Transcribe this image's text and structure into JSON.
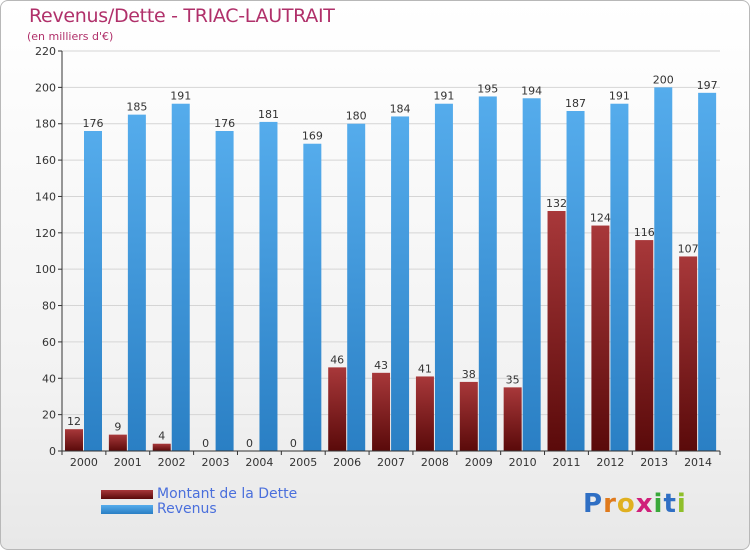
{
  "title": "Revenus/Dette - TRIAC-LAUTRAIT",
  "subtitle": "(en milliers d'€)",
  "legend": {
    "debt_label": "Montant de la Dette",
    "revenue_label": "Revenus"
  },
  "logo": {
    "letters": [
      "P",
      "r",
      "o",
      "x",
      "i",
      "t",
      "i"
    ],
    "colors": [
      "#2f6fc4",
      "#e07a1c",
      "#e0b020",
      "#d0207a",
      "#3aa83a",
      "#2f6fc4",
      "#8fbf2a"
    ]
  },
  "colors": {
    "debt": "#8b1a1a",
    "revenue": "#3d9be0",
    "axis": "#333333",
    "grid": "#d5d5d5"
  },
  "chart_data": {
    "type": "bar",
    "categories": [
      "2000",
      "2001",
      "2002",
      "2003",
      "2004",
      "2005",
      "2006",
      "2007",
      "2008",
      "2009",
      "2010",
      "2011",
      "2012",
      "2013",
      "2014"
    ],
    "series": [
      {
        "name": "Montant de la Dette",
        "values": [
          12,
          9,
          4,
          0,
          0,
          0,
          46,
          43,
          41,
          38,
          35,
          132,
          124,
          116,
          107
        ]
      },
      {
        "name": "Revenus",
        "values": [
          176,
          185,
          191,
          176,
          181,
          169,
          180,
          184,
          191,
          195,
          194,
          187,
          191,
          200,
          197
        ]
      }
    ],
    "ylim": [
      0,
      220
    ],
    "yticks": [
      0,
      20,
      40,
      60,
      80,
      100,
      120,
      140,
      160,
      180,
      200,
      220
    ],
    "grid": true,
    "legend_position": "bottom-left"
  }
}
